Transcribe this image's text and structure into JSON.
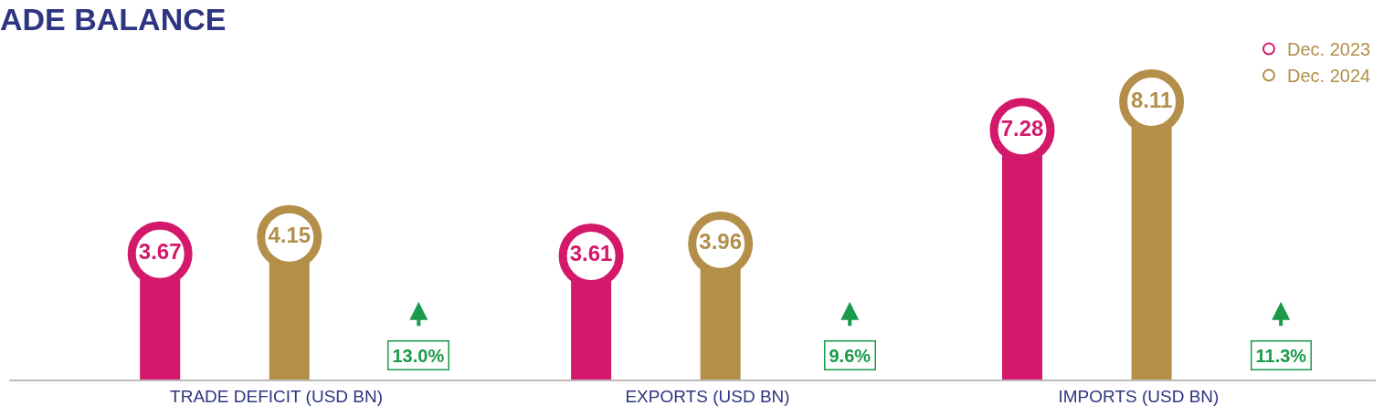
{
  "chart_data": {
    "type": "lollipop",
    "title": "ADE BALANCE",
    "categories": [
      "TRADE DEFICIT (USD BN)",
      "EXPORTS (USD BN)",
      "IMPORTS (USD BN)"
    ],
    "series": [
      {
        "name": "Dec. 2023",
        "color": "#d4186c",
        "values": [
          3.67,
          3.61,
          7.28
        ]
      },
      {
        "name": "Dec. 2024",
        "color": "#b38f4a",
        "values": [
          4.15,
          3.96,
          8.11
        ]
      }
    ],
    "data_labels": true,
    "legend": "top right",
    "marker": "circle",
    "annotations": [
      "13.0%",
      "9.6%",
      "11.3%"
    ]
  }
}
